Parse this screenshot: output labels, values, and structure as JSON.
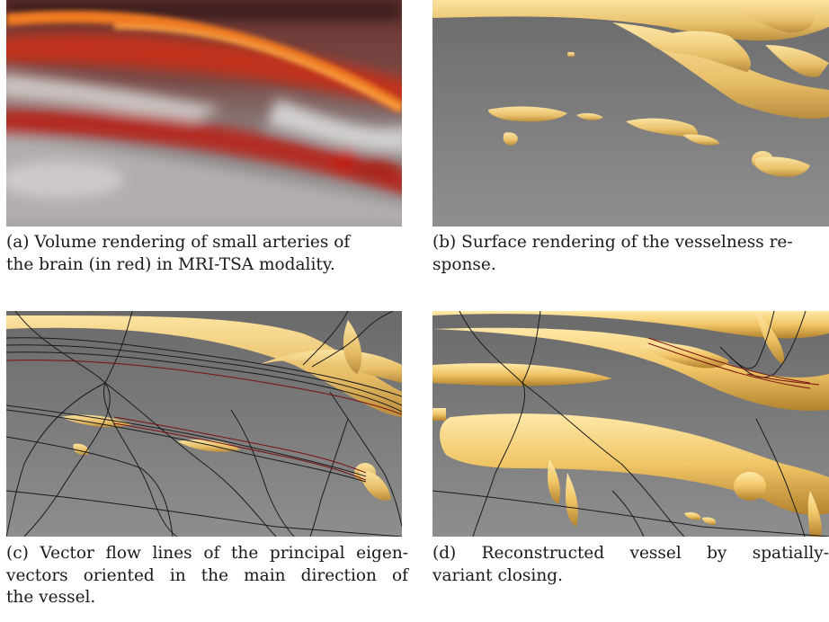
{
  "figure": {
    "panels": [
      {
        "id": "a",
        "image_description_icon": "mri-volume-rendering-image",
        "caption_lines": [
          "(a) Volume rendering of small arteries of",
          "the brain (in red) in MRI-TSA modality."
        ]
      },
      {
        "id": "b",
        "image_description_icon": "vesselness-surface-rendering-image",
        "caption_lines": [
          "(b) Surface rendering of the vesselness re-",
          "sponse."
        ]
      },
      {
        "id": "c",
        "image_description_icon": "vector-flow-lines-image",
        "caption_lines": [
          "(c) Vector flow lines of the principal eigen-",
          "vectors oriented in the main direction of",
          "the vessel."
        ]
      },
      {
        "id": "d",
        "image_description_icon": "reconstructed-vessel-image",
        "caption_lines": [
          "(d) Reconstructed vessel by spatially-",
          "variant closing."
        ]
      }
    ],
    "colors": {
      "vessel_red": "#b5261a",
      "vessel_orange": "#e8731f",
      "surface_yellow": "#f2cf7a",
      "surface_gray_top": "#6e6e6e",
      "surface_gray_bottom": "#8c8c8c",
      "flow_line_dark": "#1b1b1b",
      "flow_line_red": "#7a1010"
    }
  }
}
